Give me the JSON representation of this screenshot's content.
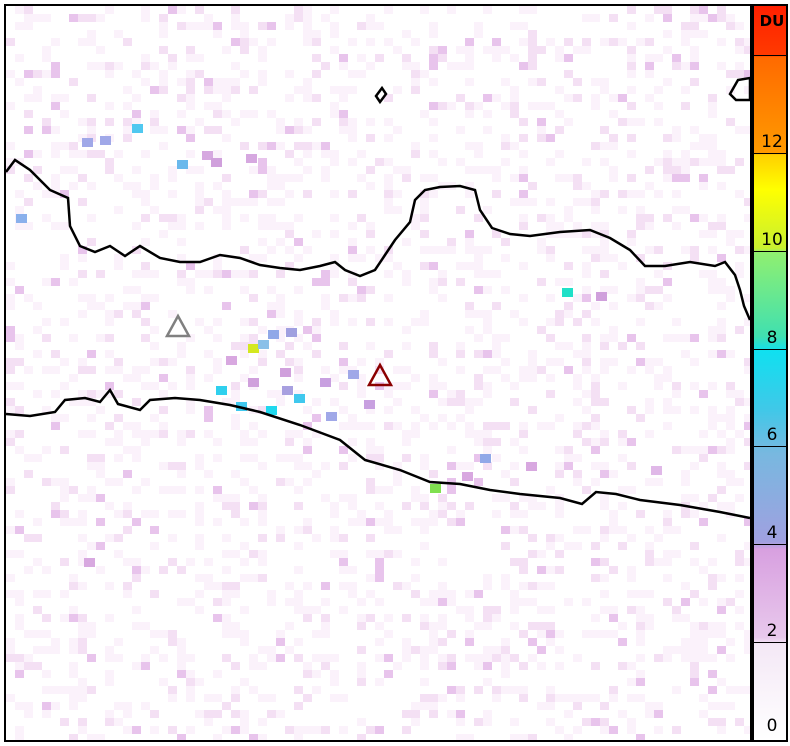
{
  "colorbar": {
    "unit": "DU",
    "ticks": [
      {
        "value": 0,
        "label": "0"
      },
      {
        "value": 2,
        "label": "2"
      },
      {
        "value": 4,
        "label": "4"
      },
      {
        "value": 6,
        "label": "6"
      },
      {
        "value": 8,
        "label": "8"
      },
      {
        "value": 10,
        "label": "10"
      },
      {
        "value": 12,
        "label": "12"
      },
      {
        "value": 14,
        "label": ""
      }
    ],
    "range": [
      0,
      15
    ]
  },
  "markers": [
    {
      "name": "volcano-gray",
      "color": "#808080"
    },
    {
      "name": "volcano-active",
      "color": "#8b0000"
    }
  ],
  "colors": {
    "coastline": "#000000",
    "background": "#ffffff"
  }
}
